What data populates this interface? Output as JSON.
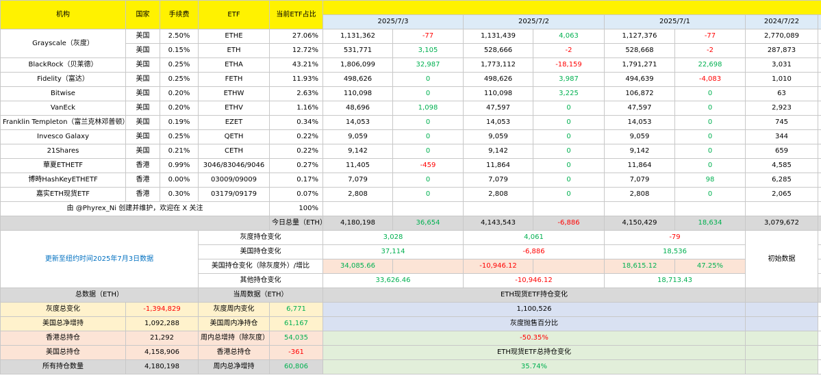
{
  "colors": {
    "header_yellow": "#fff200",
    "date_blue": "#ddebf7",
    "positive": "#00b050",
    "negative": "#ff0000",
    "summary_gray": "#d9d9d9",
    "peach": "#fce4d6"
  },
  "header": {
    "institution": "机构",
    "country": "国家",
    "fee": "手续费",
    "etf": "ETF",
    "share": "当前ETF占比"
  },
  "dates": [
    "2025/7/3",
    "2025/7/2",
    "2025/7/1",
    "2024/7/22"
  ],
  "grayscale_name": "Grayscale（灰度）",
  "rows": [
    {
      "country": "美国",
      "fee": "2.50%",
      "etf": "ETHE",
      "share": "27.06%",
      "d1": "1,131,362",
      "c1": "-77",
      "d2": "1,131,439",
      "c2": "4,063",
      "d3": "1,127,376",
      "c3": "-77",
      "base": "2,770,089"
    },
    {
      "country": "美国",
      "fee": "0.15%",
      "etf": "ETH",
      "share": "12.72%",
      "d1": "531,771",
      "c1": "3,105",
      "d2": "528,666",
      "c2": "-2",
      "d3": "528,668",
      "c3": "-2",
      "base": "287,873"
    },
    {
      "name": "BlackRock（贝莱德）",
      "country": "美国",
      "fee": "0.25%",
      "etf": "ETHA",
      "share": "43.21%",
      "d1": "1,806,099",
      "c1": "32,987",
      "d2": "1,773,112",
      "c2": "-18,159",
      "d3": "1,791,271",
      "c3": "22,698",
      "base": "3,031"
    },
    {
      "name": "Fidelity（富达）",
      "country": "美国",
      "fee": "0.25%",
      "etf": "FETH",
      "share": "11.93%",
      "d1": "498,626",
      "c1": "0",
      "d2": "498,626",
      "c2": "3,987",
      "d3": "494,639",
      "c3": "-4,083",
      "base": "1,010"
    },
    {
      "name": "Bitwise",
      "country": "美国",
      "fee": "0.20%",
      "etf": "ETHW",
      "share": "2.63%",
      "d1": "110,098",
      "c1": "0",
      "d2": "110,098",
      "c2": "3,225",
      "d3": "106,872",
      "c3": "0",
      "base": "63"
    },
    {
      "name": "VanEck",
      "country": "美国",
      "fee": "0.20%",
      "etf": "ETHV",
      "share": "1.16%",
      "d1": "48,696",
      "c1": "1,098",
      "d2": "47,597",
      "c2": "0",
      "d3": "47,597",
      "c3": "0",
      "base": "2,923"
    },
    {
      "name": "Franklin Templeton（富兰克林邓普顿）",
      "country": "美国",
      "fee": "0.19%",
      "etf": "EZET",
      "share": "0.34%",
      "d1": "14,053",
      "c1": "0",
      "d2": "14,053",
      "c2": "0",
      "d3": "14,053",
      "c3": "0",
      "base": "745"
    },
    {
      "name": "Invesco Galaxy",
      "country": "美国",
      "fee": "0.25%",
      "etf": "QETH",
      "share": "0.22%",
      "d1": "9,059",
      "c1": "0",
      "d2": "9,059",
      "c2": "0",
      "d3": "9,059",
      "c3": "0",
      "base": "344"
    },
    {
      "name": "21Shares",
      "country": "美国",
      "fee": "0.21%",
      "etf": "CETH",
      "share": "0.22%",
      "d1": "9,142",
      "c1": "0",
      "d2": "9,142",
      "c2": "0",
      "d3": "9,142",
      "c3": "0",
      "base": "659"
    },
    {
      "name": "華夏ETHETF",
      "country": "香港",
      "fee": "0.99%",
      "etf": "3046/83046/9046",
      "share": "0.27%",
      "d1": "11,405",
      "c1": "-459",
      "d2": "11,864",
      "c2": "0",
      "d3": "11,864",
      "c3": "0",
      "base": "4,585"
    },
    {
      "name": "博時HashKeyETHETF",
      "country": "香港",
      "fee": "0.00%",
      "etf": "03009/09009",
      "share": "0.17%",
      "d1": "7,079",
      "c1": "0",
      "d2": "7,079",
      "c2": "0",
      "d3": "7,079",
      "c3": "98",
      "base": "6,285"
    },
    {
      "name": "嘉实ETH现货ETF",
      "country": "香港",
      "fee": "0.30%",
      "etf": "03179/09179",
      "share": "0.07%",
      "d1": "2,808",
      "c1": "0",
      "d2": "2,808",
      "c2": "0",
      "d3": "2,808",
      "c3": "0",
      "base": "2,065"
    }
  ],
  "credit": {
    "text": "由 @Phyrex_Ni 创建并维护，欢迎在 X 关注",
    "total": "100%"
  },
  "today_total": {
    "label": "今日总量（ETH）",
    "d1": "4,180,198",
    "c1": "36,654",
    "d2": "4,143,543",
    "c2": "-6,886",
    "d3": "4,150,429",
    "c3": "18,634",
    "base": "3,079,672"
  },
  "update_note": "更新至纽约时间2025年7月3日数据",
  "initial_label": "初始数据",
  "changes": [
    {
      "label": "灰度持仓变化",
      "v1": "3,028",
      "v2": "4,061",
      "v3": "-79"
    },
    {
      "label": "美国持仓变化",
      "v1": "37,114",
      "v2": "-6,886",
      "v3": "18,536"
    },
    {
      "label": "美国持仓变化（除灰度外）/增比",
      "v1": "34,085.66",
      "v2": "-10,946.12",
      "v3": "18,615.12",
      "pct": "47.25%"
    },
    {
      "label": "其他持仓变化",
      "v1": "33,626.46",
      "v2": "-10,946.12",
      "v3": "18,713.43"
    }
  ],
  "summary": {
    "total_title": "总数据（ETH）",
    "week_title": "当周数据（ETH）",
    "etf_change_title": "ETH现货ETF持仓变化",
    "rows": [
      {
        "l1": "灰度总变化",
        "v1": "-1,394,829",
        "l2": "灰度周内变化",
        "v2": "6,771",
        "right": "1,100,526"
      },
      {
        "l1": "美国总净增持",
        "v1": "1,092,288",
        "l2": "美国周内净持仓",
        "v2": "61,167",
        "right": "灰度抛售百分比"
      },
      {
        "l1": "香港总持仓",
        "v1": "21,292",
        "l2": "周内总增持（除灰度）",
        "v2": "54,035",
        "right": "-50.35%"
      },
      {
        "l1": "美国总持仓",
        "v1": "4,158,906",
        "l2": "香港总持仓",
        "v2": "-361",
        "right": "ETH现货ETF总持仓变化"
      },
      {
        "l1": "所有持仓数量",
        "v1": "4,180,198",
        "l2": "周内总净增持",
        "v2": "60,806",
        "right": "35.74%"
      }
    ]
  }
}
